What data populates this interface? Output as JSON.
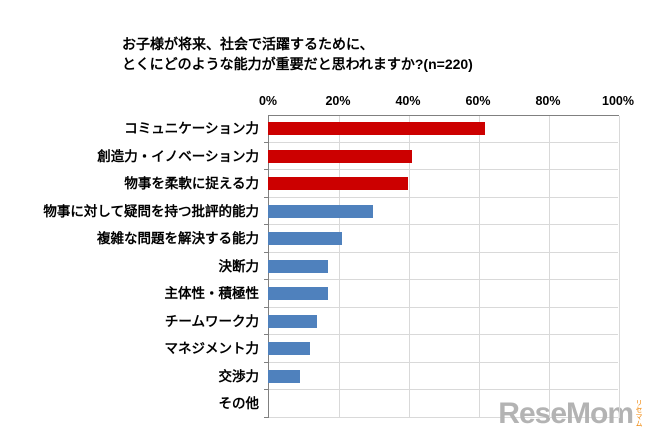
{
  "title": {
    "line1": "お子様が将来、社会で活躍するために、",
    "line2": "とくにどのような能力が重要だと思われますか?(n=220)"
  },
  "chart_data": {
    "type": "bar",
    "orientation": "horizontal",
    "title": "お子様が将来、社会で活躍するために、とくにどのような能力が重要だと思われますか?(n=220)",
    "sample_size_label": "n=220",
    "categories": [
      "コミュニケーション力",
      "創造力・イノベーション力",
      "物事を柔軟に捉える力",
      "物事に対して疑問を持つ批評的能力",
      "複雑な問題を解決する能力",
      "決断力",
      "主体性・積極性",
      "チームワーク力",
      "マネジメント力",
      "交渉力",
      "その他"
    ],
    "values": [
      62,
      41,
      40,
      30,
      21,
      17,
      17,
      14,
      12,
      9,
      0
    ],
    "unit": "%",
    "bar_colors": [
      "#cc0000",
      "#cc0000",
      "#cc0000",
      "#4f81bd",
      "#4f81bd",
      "#4f81bd",
      "#4f81bd",
      "#4f81bd",
      "#4f81bd",
      "#4f81bd",
      "#4f81bd"
    ],
    "xlim": [
      0,
      100
    ],
    "x_ticks": [
      "0%",
      "20%",
      "40%",
      "60%",
      "80%",
      "100%"
    ],
    "grid": true,
    "legend": false
  },
  "colors": {
    "highlight": "#cc0000",
    "normal": "#4f81bd",
    "gridline": "#d9d9d9",
    "axis": "#808080"
  },
  "watermark": {
    "logo": "ReseMom",
    "caption": "リセマム"
  }
}
